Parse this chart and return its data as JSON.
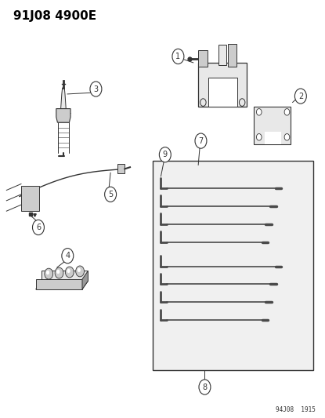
{
  "title": "91J08 4900E",
  "footer": "94J08  1915",
  "bg_color": "#ffffff",
  "line_color": "#333333",
  "fill_light": "#e8e8e8",
  "fill_mid": "#cccccc",
  "fill_dark": "#999999",
  "figsize": [
    4.15,
    5.33
  ],
  "dpi": 100,
  "callout_r": 0.018,
  "callout_fs": 7
}
